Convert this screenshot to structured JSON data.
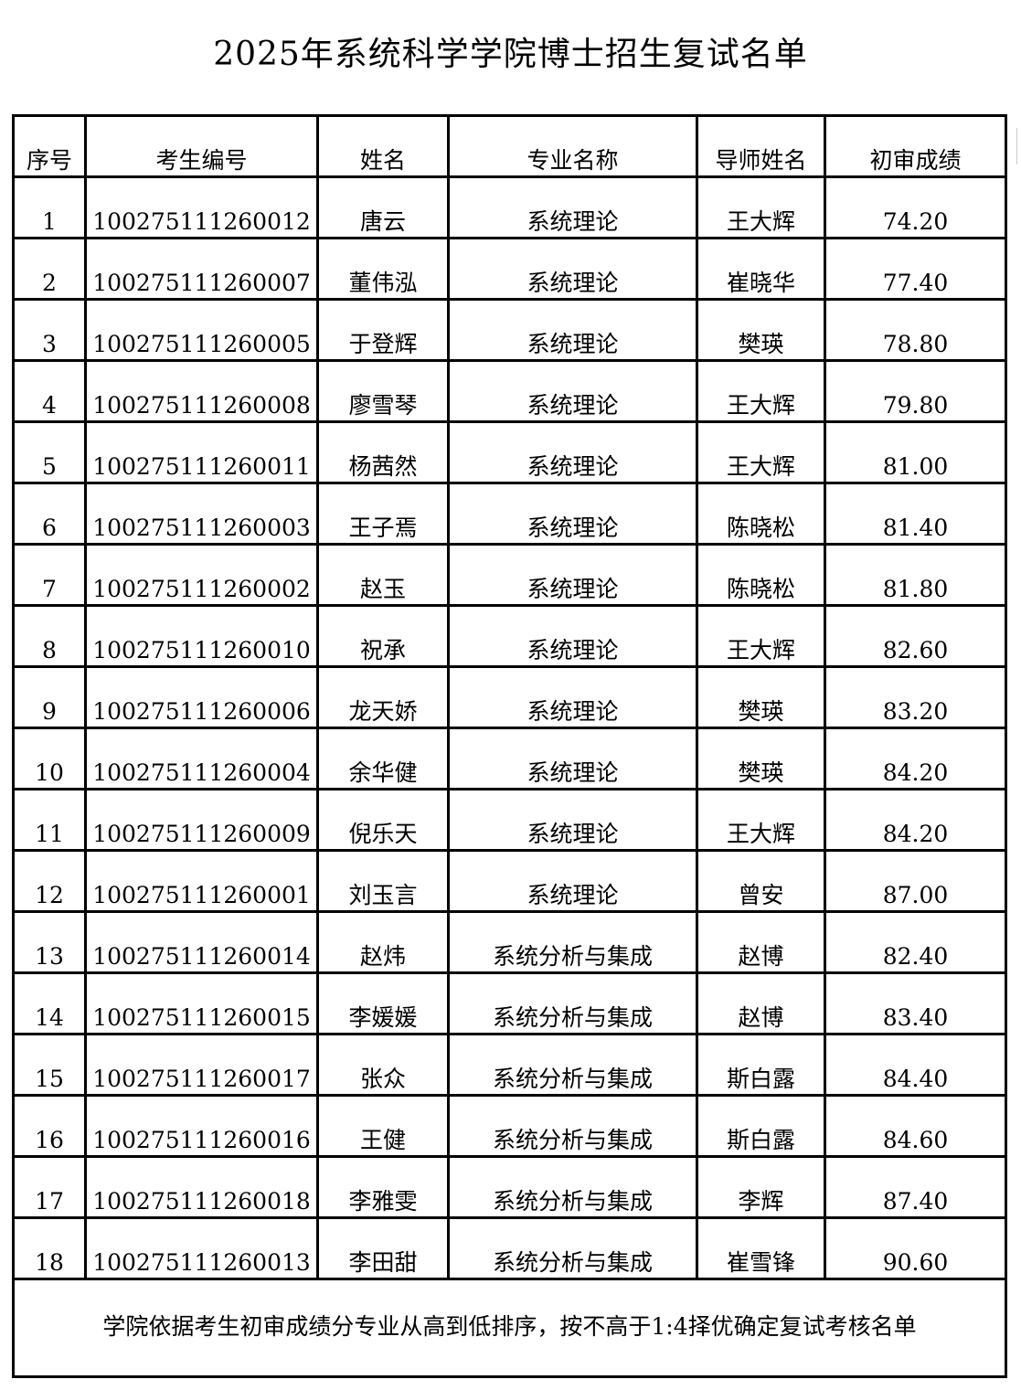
{
  "title": "2025年系统科学学院博士招生复试名单",
  "table": {
    "headers": [
      "序号",
      "考生编号",
      "姓名",
      "专业名称",
      "导师姓名",
      "初审成绩"
    ],
    "rows": [
      [
        "1",
        "100275111260012",
        "唐云",
        "系统理论",
        "王大辉",
        "74.20"
      ],
      [
        "2",
        "100275111260007",
        "董伟泓",
        "系统理论",
        "崔晓华",
        "77.40"
      ],
      [
        "3",
        "100275111260005",
        "于登辉",
        "系统理论",
        "樊瑛",
        "78.80"
      ],
      [
        "4",
        "100275111260008",
        "廖雪琴",
        "系统理论",
        "王大辉",
        "79.80"
      ],
      [
        "5",
        "100275111260011",
        "杨茜然",
        "系统理论",
        "王大辉",
        "81.00"
      ],
      [
        "6",
        "100275111260003",
        "王子焉",
        "系统理论",
        "陈晓松",
        "81.40"
      ],
      [
        "7",
        "100275111260002",
        "赵玉",
        "系统理论",
        "陈晓松",
        "81.80"
      ],
      [
        "8",
        "100275111260010",
        "祝承",
        "系统理论",
        "王大辉",
        "82.60"
      ],
      [
        "9",
        "100275111260006",
        "龙天娇",
        "系统理论",
        "樊瑛",
        "83.20"
      ],
      [
        "10",
        "100275111260004",
        "余华健",
        "系统理论",
        "樊瑛",
        "84.20"
      ],
      [
        "11",
        "100275111260009",
        "倪乐天",
        "系统理论",
        "王大辉",
        "84.20"
      ],
      [
        "12",
        "100275111260001",
        "刘玉言",
        "系统理论",
        "曾安",
        "87.00"
      ],
      [
        "13",
        "100275111260014",
        "赵炜",
        "系统分析与集成",
        "赵博",
        "82.40"
      ],
      [
        "14",
        "100275111260015",
        "李媛媛",
        "系统分析与集成",
        "赵博",
        "83.40"
      ],
      [
        "15",
        "100275111260017",
        "张众",
        "系统分析与集成",
        "斯白露",
        "84.40"
      ],
      [
        "16",
        "100275111260016",
        "王健",
        "系统分析与集成",
        "斯白露",
        "84.60"
      ],
      [
        "17",
        "100275111260018",
        "李雅雯",
        "系统分析与集成",
        "李辉",
        "87.40"
      ],
      [
        "18",
        "100275111260013",
        "李田甜",
        "系统分析与集成",
        "崔雪锋",
        "90.60"
      ]
    ],
    "footnote": "学院依据考生初审成绩分专业从高到低排序，按不高于1:4择优确定复试考核名单"
  }
}
